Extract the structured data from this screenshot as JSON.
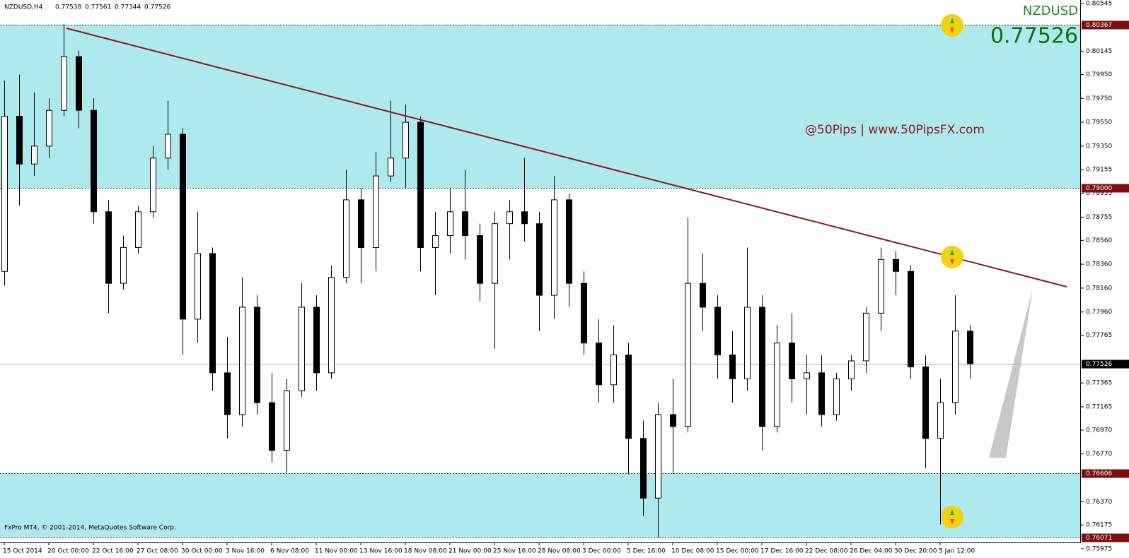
{
  "chart_data": {
    "type": "candlestick",
    "title": "NZDUSD,H4",
    "header_values": [
      0.77538,
      0.77561,
      0.77344,
      0.77526
    ],
    "symbol": "NZDUSD",
    "price": 0.77526,
    "watermark": "@50Pips | www.50PipsFX.com",
    "footer": "FxPro MT4, © 2001-2014, MetaQuotes Software Corp.",
    "ylim": [
      0.75975,
      0.80545
    ],
    "yticks": [
      {
        "value": 0.80545,
        "label": "0.80545"
      },
      {
        "value": 0.80145,
        "label": "0.80145"
      },
      {
        "value": 0.7995,
        "label": "0.79950"
      },
      {
        "value": 0.7975,
        "label": "0.79750"
      },
      {
        "value": 0.7955,
        "label": "0.79550"
      },
      {
        "value": 0.7935,
        "label": "0.79350"
      },
      {
        "value": 0.79155,
        "label": "0.79155"
      },
      {
        "value": 0.78955,
        "label": "0.78955"
      },
      {
        "value": 0.78755,
        "label": "0.78755"
      },
      {
        "value": 0.7856,
        "label": "0.78560"
      },
      {
        "value": 0.7836,
        "label": "0.78360"
      },
      {
        "value": 0.7816,
        "label": "0.78160"
      },
      {
        "value": 0.7796,
        "label": "0.77960"
      },
      {
        "value": 0.77765,
        "label": "0.77765"
      },
      {
        "value": 0.77365,
        "label": "0.77365"
      },
      {
        "value": 0.77165,
        "label": "0.77165"
      },
      {
        "value": 0.7697,
        "label": "0.76970"
      },
      {
        "value": 0.7677,
        "label": "0.76770"
      },
      {
        "value": 0.7637,
        "label": "0.76370"
      },
      {
        "value": 0.76175,
        "label": "0.76175"
      },
      {
        "value": 0.75975,
        "label": "0.75975"
      }
    ],
    "levels": [
      {
        "value": 0.80367,
        "label": "0.80367"
      },
      {
        "value": 0.79,
        "label": "0.79000"
      },
      {
        "value": 0.77526,
        "label": "0.77526"
      },
      {
        "value": 0.76606,
        "label": "0.76606"
      },
      {
        "value": 0.76071,
        "label": "0.76071"
      }
    ],
    "zones": [
      [
        0.80367,
        0.79
      ],
      [
        0.76606,
        0.76071
      ]
    ],
    "zone_color": "#aeeaed",
    "bull_color": "#ffffff",
    "bear_color": "#000000",
    "categories": [
      "15 Oct 2014",
      null,
      null,
      "20 Oct 00:00",
      null,
      null,
      "22 Oct 16:00",
      null,
      null,
      "27 Oct 08:00",
      null,
      null,
      "30 Oct 00:00",
      null,
      null,
      "3 Nov 16:00",
      null,
      null,
      "6 Nov 08:00",
      null,
      null,
      "11 Nov 00:00",
      null,
      null,
      "13 Nov 16:00",
      null,
      null,
      "18 Nov 08:00",
      null,
      null,
      "21 Nov 00:00",
      null,
      null,
      "25 Nov 16:00",
      null,
      null,
      "28 Nov 08:00",
      null,
      null,
      "3 Dec 00:00",
      null,
      null,
      "5 Dec 16:00",
      null,
      null,
      "10 Dec 08:00",
      null,
      null,
      "15 Dec 00:00",
      null,
      null,
      "17 Dec 16:00",
      null,
      null,
      "22 Dec 08:00",
      null,
      null,
      "26 Dec 04:00",
      null,
      null,
      "30 Dec 20:00",
      null,
      null,
      "5 Jan 12:00",
      null,
      null
    ],
    "open": [
      0.783,
      0.796,
      0.792,
      0.7935,
      0.7965,
      0.801,
      0.7965,
      0.788,
      0.782,
      0.785,
      0.788,
      0.7925,
      0.7945,
      0.779,
      0.7845,
      0.7745,
      0.771,
      0.78,
      0.772,
      0.768,
      0.773,
      0.78,
      0.7745,
      0.7825,
      0.789,
      0.785,
      0.791,
      0.7925,
      0.7955,
      0.785,
      0.786,
      0.788,
      0.786,
      0.782,
      0.787,
      0.788,
      0.787,
      0.781,
      0.789,
      0.782,
      0.777,
      0.7735,
      0.776,
      0.769,
      0.764,
      0.771,
      0.77,
      0.782,
      0.78,
      0.776,
      0.774,
      0.78,
      0.77,
      0.777,
      0.774,
      0.7745,
      0.771,
      0.774,
      0.7755,
      0.7795,
      0.784,
      0.783,
      0.775,
      0.769,
      0.772,
      0.778
    ],
    "high": [
      0.799,
      0.7995,
      0.798,
      0.7975,
      0.8037,
      0.8015,
      0.7975,
      0.789,
      0.786,
      0.7885,
      0.7935,
      0.7973,
      0.795,
      0.788,
      0.785,
      0.7775,
      0.7825,
      0.781,
      0.7745,
      0.774,
      0.782,
      0.781,
      0.7835,
      0.7915,
      0.79,
      0.793,
      0.7973,
      0.797,
      0.796,
      0.788,
      0.79,
      0.7915,
      0.787,
      0.788,
      0.789,
      0.7925,
      0.788,
      0.791,
      0.7895,
      0.783,
      0.779,
      0.7785,
      0.777,
      0.7705,
      0.772,
      0.774,
      0.7875,
      0.7845,
      0.781,
      0.778,
      0.785,
      0.781,
      0.7785,
      0.7795,
      0.776,
      0.776,
      0.7745,
      0.776,
      0.78,
      0.785,
      0.7847,
      0.7835,
      0.776,
      0.774,
      0.781,
      0.7785
    ],
    "low": [
      0.7818,
      0.7885,
      0.791,
      0.7925,
      0.796,
      0.795,
      0.787,
      0.7795,
      0.7815,
      0.7845,
      0.7875,
      0.7915,
      0.776,
      0.777,
      0.773,
      0.769,
      0.77,
      0.771,
      0.767,
      0.7661,
      0.7725,
      0.773,
      0.774,
      0.782,
      0.782,
      0.783,
      0.7905,
      0.79,
      0.783,
      0.781,
      0.7845,
      0.784,
      0.7805,
      0.7765,
      0.784,
      0.7855,
      0.778,
      0.779,
      0.78,
      0.776,
      0.772,
      0.772,
      0.766,
      0.7625,
      0.7607,
      0.766,
      0.7695,
      0.778,
      0.774,
      0.772,
      0.773,
      0.768,
      0.7695,
      0.772,
      0.771,
      0.77,
      0.7705,
      0.773,
      0.7745,
      0.778,
      0.781,
      0.774,
      0.7665,
      0.7618,
      0.771,
      0.774
    ],
    "close": [
      0.796,
      0.792,
      0.7935,
      0.7965,
      0.801,
      0.7965,
      0.788,
      0.782,
      0.785,
      0.788,
      0.7925,
      0.7945,
      0.779,
      0.7845,
      0.7745,
      0.771,
      0.78,
      0.772,
      0.768,
      0.773,
      0.78,
      0.7745,
      0.7825,
      0.789,
      0.785,
      0.791,
      0.7925,
      0.7955,
      0.785,
      0.786,
      0.788,
      0.786,
      0.782,
      0.787,
      0.788,
      0.787,
      0.781,
      0.789,
      0.782,
      0.777,
      0.7735,
      0.776,
      0.769,
      0.764,
      0.771,
      0.77,
      0.782,
      0.78,
      0.776,
      0.774,
      0.78,
      0.77,
      0.777,
      0.774,
      0.7745,
      0.771,
      0.774,
      0.7755,
      0.7795,
      0.784,
      0.783,
      0.775,
      0.769,
      0.772,
      0.778,
      0.77526
    ]
  }
}
